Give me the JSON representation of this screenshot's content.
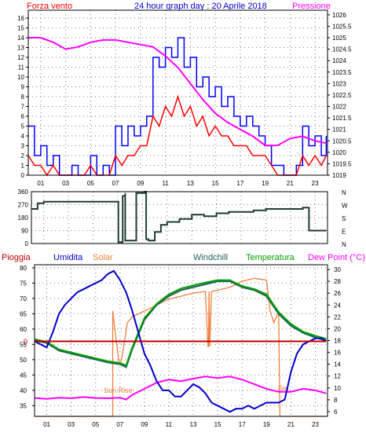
{
  "header": {
    "wind_label": "Forza vento",
    "title": "24 hour graph day : 20 Aprile 2018",
    "pressure_label": "Pressione"
  },
  "colors": {
    "wind": "#ff0000",
    "gust": "#0000ff",
    "pressure": "#ff00ff",
    "direction": "#1e3c32",
    "rain": "#c00000",
    "humidity": "#0000cc",
    "solar": "#f08040",
    "windchill": "#206060",
    "temperature": "#00a000",
    "dewpoint": "#ff00ff",
    "frame": "#000000"
  },
  "chart_data": [
    {
      "type": "line",
      "name": "wind-pressure",
      "x_ticks": [
        "01",
        "03",
        "05",
        "07",
        "09",
        "11",
        "13",
        "15",
        "17",
        "19",
        "21",
        "23"
      ],
      "y_left": {
        "label": "Forza vento",
        "ticks": [
          0,
          1,
          2,
          3,
          4,
          5,
          6,
          7,
          8,
          9,
          10,
          11,
          12,
          13,
          14,
          15,
          16
        ],
        "ylim": [
          0,
          16.8
        ]
      },
      "y_right": {
        "label": "Pressione",
        "ticks": [
          "1019",
          "1019.5",
          "1020",
          "1020.5",
          "1021",
          "1021.5",
          "1022",
          "1022.5",
          "1023",
          "1023.5",
          "1024",
          "1024.5",
          "1025",
          "1025.5",
          "1026"
        ],
        "ylim": [
          1019,
          1026.2
        ]
      },
      "series": [
        {
          "key": "gust",
          "axis": "left",
          "step": true,
          "x": [
            0,
            0.5,
            1,
            1.5,
            2,
            2.5,
            3,
            3.5,
            4,
            4.5,
            5,
            5.5,
            6,
            6.5,
            7,
            7.5,
            8,
            8.5,
            9,
            9.5,
            10,
            10.5,
            11,
            11.5,
            12,
            12.5,
            13,
            13.5,
            14,
            14.5,
            15,
            15.5,
            16,
            16.5,
            17,
            17.5,
            18,
            18.5,
            19,
            19.5,
            20,
            20.5,
            21,
            21.5,
            22,
            22.5,
            23,
            23.5,
            23.9
          ],
          "y": [
            5,
            2,
            3,
            1,
            2,
            0,
            0,
            1,
            0,
            0,
            2,
            0,
            1,
            0,
            5,
            3,
            5,
            4,
            5,
            6,
            12,
            11,
            13,
            12,
            14,
            11,
            12,
            9,
            10,
            8,
            9,
            7,
            8,
            6,
            5,
            6,
            5,
            4,
            3,
            1,
            1,
            0,
            0,
            1,
            5,
            3,
            4,
            2,
            4
          ]
        },
        {
          "key": "wind",
          "axis": "left",
          "x": [
            0,
            0.5,
            1,
            1.5,
            2,
            2.5,
            3,
            3.5,
            4,
            4.5,
            5,
            5.5,
            6,
            6.5,
            7,
            7.5,
            8,
            8.5,
            9,
            9.5,
            10,
            10.5,
            11,
            11.5,
            12,
            12.5,
            13,
            13.5,
            14,
            14.5,
            15,
            15.5,
            16,
            16.5,
            17,
            17.5,
            18,
            18.5,
            19,
            19.5,
            20,
            20.5,
            21,
            21.5,
            22,
            22.5,
            23,
            23.5,
            23.9
          ],
          "y": [
            2,
            1,
            1,
            0,
            1,
            0,
            0,
            0,
            0,
            0,
            1,
            0,
            0,
            0,
            2,
            1,
            2,
            2,
            3,
            3,
            6,
            5,
            7,
            6,
            8,
            6,
            7,
            5,
            6,
            4,
            5,
            4,
            4,
            3,
            3,
            3,
            2,
            2,
            2,
            1,
            0,
            0,
            0,
            0,
            2,
            1,
            2,
            1,
            2
          ]
        },
        {
          "key": "pressure",
          "axis": "right",
          "x": [
            0,
            1,
            2,
            3,
            4,
            5,
            6,
            7,
            8,
            9,
            10,
            11,
            12,
            13,
            14,
            15,
            16,
            17,
            18,
            19,
            20,
            21,
            22,
            23,
            23.9
          ],
          "y": [
            1025.0,
            1025.0,
            1024.8,
            1024.5,
            1024.6,
            1024.8,
            1024.9,
            1024.9,
            1024.8,
            1024.7,
            1024.6,
            1024.2,
            1023.7,
            1023.0,
            1022.3,
            1021.7,
            1021.3,
            1021.0,
            1020.7,
            1020.3,
            1020.3,
            1020.6,
            1020.7,
            1020.5,
            1020.4
          ]
        }
      ]
    },
    {
      "type": "line",
      "name": "wind-direction",
      "y_left": {
        "ticks": [
          "360",
          "270",
          "180",
          "90",
          "0"
        ],
        "ylim": [
          0,
          360
        ]
      },
      "y_right": {
        "ticks": [
          "N",
          "W",
          "S",
          "E",
          "N"
        ]
      },
      "series": [
        {
          "key": "direction",
          "step": true,
          "x": [
            0,
            0.2,
            0.5,
            1,
            2,
            3,
            4,
            5,
            6,
            7,
            7.05,
            7.4,
            7.6,
            7.6,
            8.5,
            9.2,
            9.3,
            9.5,
            10,
            10.5,
            11,
            12,
            13,
            14,
            15,
            16,
            17,
            18,
            19,
            20,
            21,
            22,
            22.4,
            22.5,
            23.9
          ],
          "y": [
            240,
            240,
            280,
            290,
            290,
            290,
            290,
            290,
            290,
            290,
            10,
            330,
            350,
            20,
            350,
            360,
            30,
            20,
            80,
            130,
            150,
            170,
            200,
            190,
            210,
            220,
            220,
            230,
            240,
            240,
            240,
            250,
            250,
            90,
            90
          ]
        }
      ]
    },
    {
      "type": "line",
      "name": "rain-humidity-solar-temperature",
      "header": {
        "rain": "Pioggia",
        "humidity": "Umidita",
        "solar": "Solar",
        "windchill": "Windchill",
        "temperature": "Temperatura",
        "dewpoint": "Dew Point (°C)"
      },
      "y_left": {
        "ticks": [
          35,
          40,
          45,
          50,
          55,
          60,
          65,
          70,
          75,
          80
        ],
        "ylim": [
          31.5,
          81
        ]
      },
      "y_right": {
        "ticks": [
          6,
          8,
          10,
          12,
          14,
          16,
          18,
          20,
          22,
          24,
          26,
          28,
          30
        ],
        "ylim": [
          5.2,
          30.8
        ]
      },
      "rain_zero_label": "0",
      "annotations": {
        "sunrise": "Sun Rise",
        "sunset": "Set"
      },
      "series": [
        {
          "key": "humidity",
          "axis": "left",
          "x": [
            0,
            0.5,
            1,
            1.5,
            2,
            2.5,
            3,
            3.5,
            4,
            4.5,
            5,
            5.5,
            6,
            6.5,
            7,
            7.5,
            8,
            8.5,
            9,
            9.5,
            10,
            10.5,
            11,
            11.5,
            12,
            12.5,
            13,
            13.5,
            14,
            14.5,
            15,
            15.5,
            16,
            16.5,
            17,
            17.5,
            18,
            18.5,
            19,
            19.5,
            20,
            20.5,
            21,
            21.5,
            22,
            22.5,
            23,
            23.5,
            23.9
          ],
          "y": [
            56,
            55,
            54,
            59,
            65,
            68,
            70,
            72,
            73,
            74,
            75,
            76,
            78,
            79,
            76,
            72,
            66,
            59,
            52,
            48,
            43,
            40,
            40,
            38,
            38,
            40,
            42,
            41,
            39,
            36,
            35,
            34,
            33,
            34,
            34,
            35,
            34,
            35,
            36,
            36,
            36,
            37,
            46,
            52,
            55,
            56,
            57,
            57,
            56
          ]
        },
        {
          "key": "dewpoint",
          "axis": "left",
          "x": [
            0,
            1,
            2,
            3,
            4,
            5,
            6,
            7,
            7.5,
            8,
            9,
            10,
            11,
            12,
            13,
            14,
            15,
            16,
            17,
            18,
            19,
            20,
            21,
            22,
            23,
            23.9
          ],
          "y": [
            37.5,
            37.2,
            37.6,
            37.4,
            37.8,
            37.5,
            37.4,
            37.6,
            37.0,
            38.5,
            40.5,
            42.5,
            43.5,
            43.0,
            43.8,
            44.5,
            44.0,
            44.5,
            43.5,
            42.0,
            40.5,
            39.5,
            39.5,
            40.5,
            40.0,
            39.0
          ]
        },
        {
          "key": "windchill",
          "axis": "right",
          "x": [
            0,
            1,
            2,
            3,
            4,
            5,
            6,
            7,
            7.5,
            8,
            9,
            10,
            11,
            12,
            13,
            14,
            15,
            16,
            17,
            18,
            19,
            20,
            21,
            22,
            23,
            23.9
          ],
          "y": [
            18.0,
            17.6,
            16.3,
            15.8,
            15.3,
            14.8,
            14.3,
            14.0,
            13.5,
            16.5,
            21.5,
            24.0,
            25.5,
            26.5,
            27.0,
            27.5,
            28.0,
            28.0,
            27.0,
            26.5,
            25.5,
            22.5,
            20.5,
            19.3,
            18.5,
            18.0
          ]
        },
        {
          "key": "temperature",
          "axis": "right",
          "x": [
            0,
            1,
            2,
            3,
            4,
            5,
            6,
            7,
            7.5,
            8,
            9,
            10,
            11,
            12,
            13,
            14,
            15,
            16,
            17,
            18,
            19,
            20,
            21,
            22,
            23,
            23.9
          ],
          "y": [
            18.2,
            17.8,
            16.5,
            16.0,
            15.5,
            15.0,
            14.5,
            14.2,
            13.8,
            16.8,
            21.8,
            24.2,
            25.8,
            26.8,
            27.3,
            27.8,
            28.2,
            28.2,
            27.2,
            26.7,
            25.8,
            22.8,
            20.8,
            19.5,
            18.8,
            18.3
          ]
        },
        {
          "key": "solar",
          "axis": "right",
          "x": [
            0,
            6.4,
            6.4,
            6.9,
            7.1,
            7.3,
            7.6,
            8,
            9,
            10,
            11,
            12,
            13,
            14,
            14.2,
            14.25,
            14.3,
            14.35,
            14.5,
            15,
            16,
            17,
            18,
            19,
            19.3,
            19.6,
            20,
            20.1,
            20.15,
            20.2,
            21,
            22,
            23,
            23.9
          ],
          "y": [
            5.2,
            5.2,
            23,
            14.5,
            14.5,
            17,
            21,
            22,
            23,
            24,
            25,
            25.5,
            26,
            26.3,
            17,
            17,
            26.3,
            17,
            26.3,
            26.5,
            27,
            28,
            28.5,
            28.2,
            23,
            21,
            23,
            5.2,
            5.2,
            5.2,
            5.2,
            5.2,
            5.2,
            5.2
          ]
        },
        {
          "key": "rain",
          "axis": "left",
          "x": [
            0,
            23.9
          ],
          "y": [
            56,
            56
          ]
        }
      ]
    }
  ]
}
